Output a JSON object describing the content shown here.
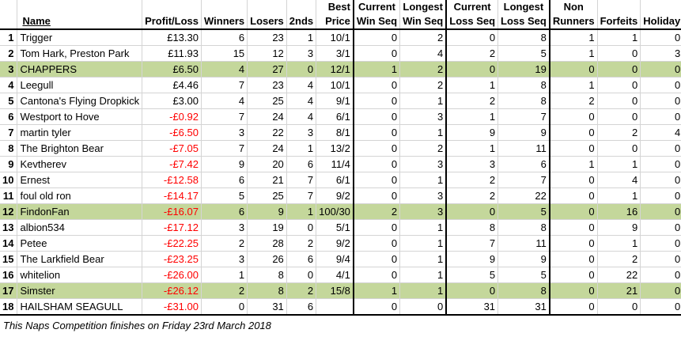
{
  "header": {
    "name": "Name",
    "profit_loss": "Profit/Loss",
    "winners": "Winners",
    "losers": "Losers",
    "seconds": "2nds",
    "best_price_1": "Best",
    "best_price_2": "Price",
    "current_win_1": "Current",
    "current_win_2": "Win Seq",
    "longest_win_1": "Longest",
    "longest_win_2": "Win Seq",
    "current_loss_1": "Current",
    "current_loss_2": "Loss Seq",
    "longest_loss_1": "Longest",
    "longest_loss_2": "Loss Seq",
    "non_runners_1": "Non",
    "non_runners_2": "Runners",
    "forfeits": "Forfeits",
    "holiday": "Holiday"
  },
  "rows": [
    {
      "rank": "1",
      "name": "Trigger",
      "pl": "£13.30",
      "neg": false,
      "w": "6",
      "l": "23",
      "s": "1",
      "bp": "10/1",
      "cw": "0",
      "lw": "2",
      "cl": "0",
      "ll": "8",
      "nr": "1",
      "f": "1",
      "h": "0",
      "hl": false
    },
    {
      "rank": "2",
      "name": "Tom Hark, Preston Park",
      "pl": "£11.93",
      "neg": false,
      "w": "15",
      "l": "12",
      "s": "3",
      "bp": "3/1",
      "cw": "0",
      "lw": "4",
      "cl": "2",
      "ll": "5",
      "nr": "1",
      "f": "0",
      "h": "3",
      "hl": false
    },
    {
      "rank": "3",
      "name": "CHAPPERS",
      "pl": "£6.50",
      "neg": false,
      "w": "4",
      "l": "27",
      "s": "0",
      "bp": "12/1",
      "cw": "1",
      "lw": "2",
      "cl": "0",
      "ll": "19",
      "nr": "0",
      "f": "0",
      "h": "0",
      "hl": true
    },
    {
      "rank": "4",
      "name": "Leegull",
      "pl": "£4.46",
      "neg": false,
      "w": "7",
      "l": "23",
      "s": "4",
      "bp": "10/1",
      "cw": "0",
      "lw": "2",
      "cl": "1",
      "ll": "8",
      "nr": "1",
      "f": "0",
      "h": "0",
      "hl": false
    },
    {
      "rank": "5",
      "name": "Cantona's Flying Dropkick",
      "pl": "£3.00",
      "neg": false,
      "w": "4",
      "l": "25",
      "s": "4",
      "bp": "9/1",
      "cw": "0",
      "lw": "1",
      "cl": "2",
      "ll": "8",
      "nr": "2",
      "f": "0",
      "h": "0",
      "hl": false
    },
    {
      "rank": "6",
      "name": "Westport to Hove",
      "pl": "-£0.92",
      "neg": true,
      "w": "7",
      "l": "24",
      "s": "4",
      "bp": "6/1",
      "cw": "0",
      "lw": "3",
      "cl": "1",
      "ll": "7",
      "nr": "0",
      "f": "0",
      "h": "0",
      "hl": false
    },
    {
      "rank": "7",
      "name": "martin tyler",
      "pl": "-£6.50",
      "neg": true,
      "w": "3",
      "l": "22",
      "s": "3",
      "bp": "8/1",
      "cw": "0",
      "lw": "1",
      "cl": "9",
      "ll": "9",
      "nr": "0",
      "f": "2",
      "h": "4",
      "hl": false
    },
    {
      "rank": "8",
      "name": "The Brighton Bear",
      "pl": "-£7.05",
      "neg": true,
      "w": "7",
      "l": "24",
      "s": "1",
      "bp": "13/2",
      "cw": "0",
      "lw": "2",
      "cl": "1",
      "ll": "11",
      "nr": "0",
      "f": "0",
      "h": "0",
      "hl": false
    },
    {
      "rank": "9",
      "name": "Kevtherev",
      "pl": "-£7.42",
      "neg": true,
      "w": "9",
      "l": "20",
      "s": "6",
      "bp": "11/4",
      "cw": "0",
      "lw": "3",
      "cl": "3",
      "ll": "6",
      "nr": "1",
      "f": "1",
      "h": "0",
      "hl": false
    },
    {
      "rank": "10",
      "name": "Ernest",
      "pl": "-£12.58",
      "neg": true,
      "w": "6",
      "l": "21",
      "s": "7",
      "bp": "6/1",
      "cw": "0",
      "lw": "1",
      "cl": "2",
      "ll": "7",
      "nr": "0",
      "f": "4",
      "h": "0",
      "hl": false
    },
    {
      "rank": "11",
      "name": "foul old ron",
      "pl": "-£14.17",
      "neg": true,
      "w": "5",
      "l": "25",
      "s": "7",
      "bp": "9/2",
      "cw": "0",
      "lw": "3",
      "cl": "2",
      "ll": "22",
      "nr": "0",
      "f": "1",
      "h": "0",
      "hl": false
    },
    {
      "rank": "12",
      "name": "FindonFan",
      "pl": "-£16.07",
      "neg": true,
      "w": "6",
      "l": "9",
      "s": "1",
      "bp": "100/30",
      "cw": "2",
      "lw": "3",
      "cl": "0",
      "ll": "5",
      "nr": "0",
      "f": "16",
      "h": "0",
      "hl": true
    },
    {
      "rank": "13",
      "name": "albion534",
      "pl": "-£17.12",
      "neg": true,
      "w": "3",
      "l": "19",
      "s": "0",
      "bp": "5/1",
      "cw": "0",
      "lw": "1",
      "cl": "8",
      "ll": "8",
      "nr": "0",
      "f": "9",
      "h": "0",
      "hl": false
    },
    {
      "rank": "14",
      "name": "Petee",
      "pl": "-£22.25",
      "neg": true,
      "w": "2",
      "l": "28",
      "s": "2",
      "bp": "9/2",
      "cw": "0",
      "lw": "1",
      "cl": "7",
      "ll": "11",
      "nr": "0",
      "f": "1",
      "h": "0",
      "hl": false
    },
    {
      "rank": "15",
      "name": "The Larkfield Bear",
      "pl": "-£23.25",
      "neg": true,
      "w": "3",
      "l": "26",
      "s": "6",
      "bp": "9/4",
      "cw": "0",
      "lw": "1",
      "cl": "9",
      "ll": "9",
      "nr": "0",
      "f": "2",
      "h": "0",
      "hl": false
    },
    {
      "rank": "16",
      "name": "whitelion",
      "pl": "-£26.00",
      "neg": true,
      "w": "1",
      "l": "8",
      "s": "0",
      "bp": "4/1",
      "cw": "0",
      "lw": "1",
      "cl": "5",
      "ll": "5",
      "nr": "0",
      "f": "22",
      "h": "0",
      "hl": false
    },
    {
      "rank": "17",
      "name": "Simster",
      "pl": "-£26.12",
      "neg": true,
      "w": "2",
      "l": "8",
      "s": "2",
      "bp": "15/8",
      "cw": "1",
      "lw": "1",
      "cl": "0",
      "ll": "8",
      "nr": "0",
      "f": "21",
      "h": "0",
      "hl": true
    },
    {
      "rank": "18",
      "name": "HAILSHAM SEAGULL",
      "pl": "-£31.00",
      "neg": true,
      "w": "0",
      "l": "31",
      "s": "6",
      "bp": "",
      "cw": "0",
      "lw": "0",
      "cl": "31",
      "ll": "31",
      "nr": "0",
      "f": "0",
      "h": "0",
      "hl": false
    }
  ],
  "footer": "This Naps Competition finishes on Friday 23rd March 2018"
}
